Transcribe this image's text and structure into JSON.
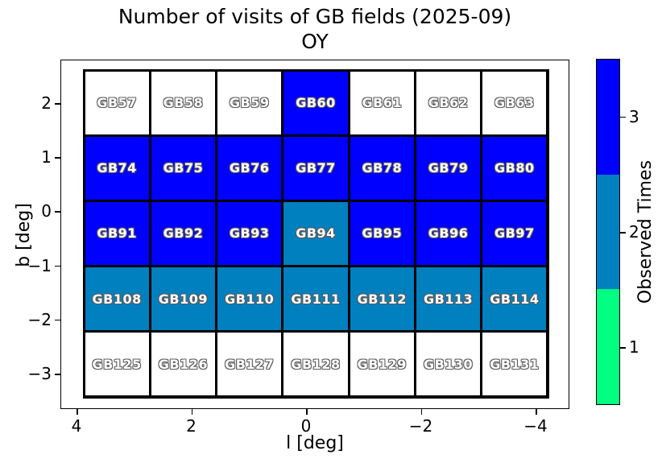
{
  "title": {
    "line1": "Number of visits of GB fields (2025-09)",
    "line2": "OY"
  },
  "chart_data": {
    "type": "heatmap",
    "title": "Number of visits of GB fields (2025-09)",
    "subtitle": "OY",
    "xlabel": "l [deg]",
    "ylabel": "b [deg]",
    "x_tick_labels": [
      "4",
      "2",
      "0",
      "−2",
      "−4"
    ],
    "y_tick_labels": [
      "2",
      "1",
      "0",
      "−1",
      "−2",
      "−3"
    ],
    "x_axis_reversed": true,
    "grid_off": true,
    "colorbar": {
      "label": "Observed Times",
      "tick_labels": [
        "3",
        "2",
        "1"
      ],
      "segment_colors_top_to_bottom": [
        "#0000ff",
        "#0080bf",
        "#00ff80"
      ]
    },
    "color_scale": {
      "0": "#ffffff",
      "1": "#00ff80",
      "2": "#0080bf",
      "3": "#0000ff"
    },
    "rows": [
      {
        "fields": [
          "GB57",
          "GB58",
          "GB59",
          "GB60",
          "GB61",
          "GB62",
          "GB63"
        ],
        "visits": [
          0,
          0,
          0,
          3,
          0,
          0,
          0
        ]
      },
      {
        "fields": [
          "GB74",
          "GB75",
          "GB76",
          "GB77",
          "GB78",
          "GB79",
          "GB80"
        ],
        "visits": [
          3,
          3,
          3,
          3,
          3,
          3,
          3
        ]
      },
      {
        "fields": [
          "GB91",
          "GB92",
          "GB93",
          "GB94",
          "GB95",
          "GB96",
          "GB97"
        ],
        "visits": [
          3,
          3,
          3,
          2,
          3,
          3,
          3
        ]
      },
      {
        "fields": [
          "GB108",
          "GB109",
          "GB110",
          "GB111",
          "GB112",
          "GB113",
          "GB114"
        ],
        "visits": [
          2,
          2,
          2,
          2,
          2,
          2,
          2
        ]
      },
      {
        "fields": [
          "GB125",
          "GB126",
          "GB127",
          "GB128",
          "GB129",
          "GB130",
          "GB131"
        ],
        "visits": [
          0,
          0,
          0,
          0,
          0,
          0,
          0
        ]
      }
    ]
  }
}
